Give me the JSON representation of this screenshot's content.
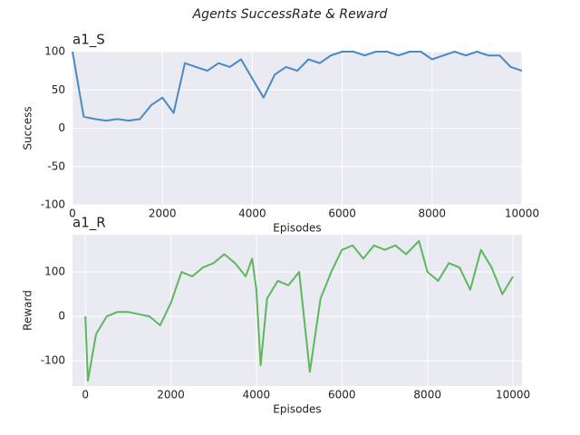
{
  "title": "Agents SuccessRate & Reward",
  "chart_data": [
    {
      "type": "line",
      "title": "a1_S",
      "x_label": "Episodes",
      "y_label": "Success",
      "color": "#4a89c2",
      "x": [
        0,
        250,
        500,
        750,
        1000,
        1250,
        1500,
        1750,
        2000,
        2250,
        2500,
        2750,
        3000,
        3250,
        3500,
        3750,
        4000,
        4250,
        4500,
        4750,
        5000,
        5250,
        5500,
        5750,
        6000,
        6250,
        6500,
        6750,
        7000,
        7250,
        7500,
        7750,
        8000,
        8250,
        8500,
        8750,
        9000,
        9250,
        9500,
        9750,
        10000
      ],
      "values": [
        100,
        15,
        12,
        10,
        12,
        10,
        12,
        30,
        40,
        20,
        85,
        80,
        75,
        85,
        80,
        90,
        65,
        40,
        70,
        80,
        75,
        90,
        85,
        95,
        100,
        100,
        95,
        100,
        100,
        95,
        100,
        100,
        90,
        95,
        100,
        95,
        100,
        95,
        95,
        80,
        75
      ],
      "xlim": [
        0,
        10000
      ],
      "ylim": [
        -100,
        100
      ],
      "xticks": [
        0,
        2000,
        4000,
        6000,
        8000,
        10000
      ],
      "yticks": [
        -100,
        -50,
        0,
        50,
        100
      ],
      "grid": true
    },
    {
      "type": "line",
      "title": "a1_R",
      "x_label": "Episodes",
      "y_label": "Reward",
      "color": "#5cb85c",
      "x": [
        0,
        60,
        250,
        500,
        750,
        1000,
        1250,
        1500,
        1750,
        2000,
        2250,
        2500,
        2750,
        3000,
        3250,
        3500,
        3750,
        3900,
        4000,
        4100,
        4250,
        4500,
        4750,
        5000,
        5250,
        5500,
        5750,
        6000,
        6250,
        6500,
        6750,
        7000,
        7250,
        7500,
        7800,
        8000,
        8250,
        8500,
        8750,
        9000,
        9250,
        9500,
        9750,
        10000
      ],
      "values": [
        0,
        -145,
        -40,
        0,
        10,
        10,
        5,
        0,
        -20,
        30,
        100,
        90,
        110,
        120,
        140,
        120,
        90,
        130,
        60,
        -110,
        40,
        80,
        70,
        100,
        -125,
        40,
        100,
        150,
        160,
        130,
        160,
        150,
        160,
        140,
        170,
        100,
        80,
        120,
        110,
        60,
        150,
        110,
        50,
        90
      ],
      "xlim": [
        -300,
        10210
      ],
      "ylim": [
        -157,
        184
      ],
      "xticks": [
        0,
        2000,
        4000,
        6000,
        8000,
        10000
      ],
      "yticks": [
        -100,
        0,
        100
      ],
      "grid": true
    }
  ]
}
